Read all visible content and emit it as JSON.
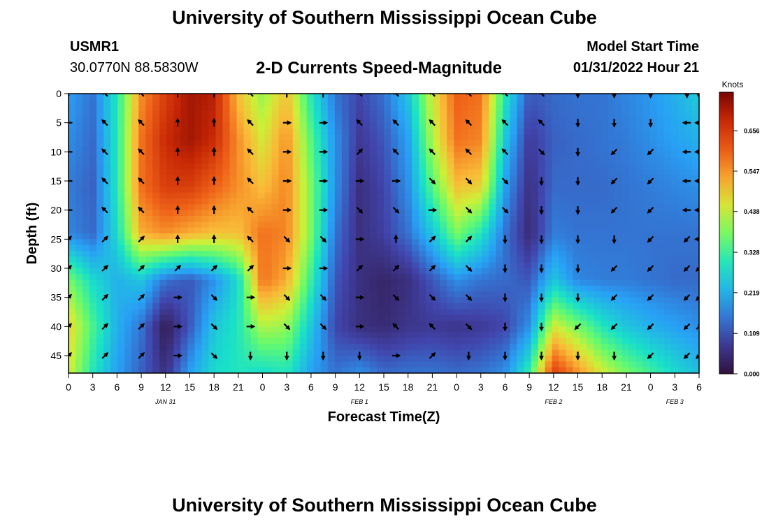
{
  "page": {
    "title": "University of Southern Mississippi Ocean Cube",
    "footer_title": "University of Southern Mississippi Ocean Cube",
    "station_id": "USMR1",
    "coordinates": "30.0770N  88.5830W",
    "plot_title": "2-D Currents Speed-Magnitude",
    "model_start_label": "Model Start Time",
    "model_start_value": "01/31/2022 Hour 21"
  },
  "chart_data": {
    "type": "heatmap",
    "title": "2-D Currents Speed-Magnitude",
    "xlabel": "Forecast Time(Z)",
    "ylabel": "Depth (ft)",
    "x_tick_labels": [
      "0",
      "3",
      "6",
      "9",
      "12",
      "15",
      "18",
      "21",
      "0",
      "3",
      "6",
      "9",
      "12",
      "15",
      "18",
      "21",
      "0",
      "3",
      "6",
      "9",
      "12",
      "15",
      "18",
      "21",
      "0",
      "3",
      "6"
    ],
    "x_range_hours": [
      0,
      78
    ],
    "date_labels": [
      {
        "text": "JAN 31",
        "hour": 12
      },
      {
        "text": "FEB 1",
        "hour": 36
      },
      {
        "text": "FEB 2",
        "hour": 60
      },
      {
        "text": "FEB 3",
        "hour": 75
      }
    ],
    "y_ticks": [
      0,
      5,
      10,
      15,
      20,
      25,
      30,
      35,
      40,
      45
    ],
    "y_range": [
      0,
      48
    ],
    "colorbar": {
      "label": "Knots",
      "ticks": [
        "0.656",
        "0.547",
        "0.438",
        "0.328",
        "0.219",
        "0.109",
        "0.000"
      ],
      "range": [
        0,
        0.76
      ]
    },
    "speed_columns_hours": [
      0,
      3,
      6,
      9,
      12,
      15,
      18,
      21,
      24,
      27,
      30,
      33,
      36,
      39,
      42,
      45,
      48,
      51,
      54,
      57,
      60,
      63,
      66,
      69,
      72,
      75,
      78
    ],
    "speed_rows_depth_ft": [
      0,
      8,
      16,
      24,
      32,
      40,
      48
    ],
    "speed_grid_knots": [
      [
        0.2,
        0.15,
        0.3,
        0.55,
        0.65,
        0.72,
        0.7,
        0.5,
        0.4,
        0.5,
        0.3,
        0.15,
        0.1,
        0.15,
        0.25,
        0.45,
        0.6,
        0.58,
        0.3,
        0.12,
        0.14,
        0.15,
        0.15,
        0.17,
        0.19,
        0.22,
        0.26
      ],
      [
        0.18,
        0.14,
        0.3,
        0.58,
        0.68,
        0.72,
        0.68,
        0.55,
        0.45,
        0.55,
        0.35,
        0.18,
        0.08,
        0.12,
        0.2,
        0.42,
        0.58,
        0.56,
        0.25,
        0.08,
        0.13,
        0.14,
        0.15,
        0.16,
        0.18,
        0.2,
        0.22
      ],
      [
        0.16,
        0.13,
        0.3,
        0.58,
        0.65,
        0.65,
        0.6,
        0.55,
        0.5,
        0.56,
        0.38,
        0.18,
        0.06,
        0.1,
        0.18,
        0.35,
        0.5,
        0.48,
        0.2,
        0.06,
        0.14,
        0.14,
        0.14,
        0.15,
        0.16,
        0.17,
        0.18
      ],
      [
        0.17,
        0.14,
        0.28,
        0.52,
        0.55,
        0.52,
        0.5,
        0.5,
        0.58,
        0.56,
        0.38,
        0.15,
        0.06,
        0.09,
        0.15,
        0.25,
        0.38,
        0.3,
        0.15,
        0.05,
        0.16,
        0.15,
        0.15,
        0.15,
        0.15,
        0.15,
        0.15
      ],
      [
        0.38,
        0.28,
        0.22,
        0.25,
        0.15,
        0.12,
        0.18,
        0.28,
        0.58,
        0.52,
        0.32,
        0.12,
        0.06,
        0.04,
        0.06,
        0.12,
        0.18,
        0.15,
        0.14,
        0.12,
        0.25,
        0.17,
        0.16,
        0.16,
        0.15,
        0.14,
        0.14
      ],
      [
        0.48,
        0.34,
        0.22,
        0.15,
        0.02,
        0.12,
        0.25,
        0.3,
        0.42,
        0.4,
        0.25,
        0.1,
        0.06,
        0.05,
        0.07,
        0.08,
        0.07,
        0.08,
        0.1,
        0.18,
        0.45,
        0.38,
        0.3,
        0.25,
        0.22,
        0.2,
        0.18
      ],
      [
        0.45,
        0.3,
        0.2,
        0.13,
        0.06,
        0.2,
        0.28,
        0.3,
        0.28,
        0.3,
        0.2,
        0.15,
        0.18,
        0.14,
        0.15,
        0.15,
        0.14,
        0.15,
        0.18,
        0.32,
        0.65,
        0.55,
        0.45,
        0.38,
        0.33,
        0.28,
        0.24
      ]
    ],
    "vector_columns_hours": [
      0,
      4.5,
      9,
      13.5,
      18,
      22.5,
      27,
      31.5,
      36,
      40.5,
      45,
      49.5,
      54,
      58.5,
      63,
      67.5,
      72,
      76.5,
      78
    ],
    "vector_rows_depth_ft": [
      0,
      5,
      10,
      15,
      20,
      25,
      30,
      35,
      40,
      45
    ],
    "vector_angles_deg": [
      [
        225,
        315,
        315,
        0,
        0,
        315,
        0,
        0,
        315,
        315,
        315,
        315,
        315,
        315,
        180,
        180,
        180,
        180,
        180
      ],
      [
        270,
        315,
        315,
        0,
        0,
        315,
        90,
        90,
        315,
        315,
        315,
        315,
        315,
        315,
        180,
        180,
        180,
        270,
        270
      ],
      [
        270,
        315,
        315,
        0,
        0,
        315,
        90,
        90,
        45,
        315,
        315,
        315,
        315,
        135,
        180,
        225,
        225,
        270,
        270
      ],
      [
        270,
        315,
        315,
        0,
        0,
        315,
        90,
        90,
        90,
        90,
        135,
        135,
        135,
        180,
        180,
        225,
        225,
        270,
        270
      ],
      [
        270,
        315,
        315,
        0,
        0,
        315,
        90,
        90,
        135,
        135,
        90,
        135,
        135,
        180,
        180,
        225,
        225,
        270,
        270
      ],
      [
        45,
        45,
        45,
        0,
        0,
        315,
        135,
        135,
        90,
        0,
        45,
        45,
        180,
        180,
        180,
        180,
        225,
        225,
        270
      ],
      [
        45,
        45,
        45,
        45,
        45,
        45,
        90,
        90,
        45,
        45,
        45,
        135,
        180,
        180,
        180,
        225,
        225,
        225,
        225
      ],
      [
        45,
        45,
        45,
        90,
        135,
        90,
        135,
        135,
        90,
        135,
        135,
        135,
        180,
        180,
        180,
        225,
        225,
        225,
        225
      ],
      [
        45,
        45,
        45,
        90,
        135,
        90,
        135,
        135,
        90,
        315,
        315,
        135,
        180,
        180,
        225,
        225,
        225,
        225,
        45
      ],
      [
        45,
        45,
        45,
        90,
        135,
        180,
        180,
        180,
        180,
        90,
        45,
        180,
        180,
        180,
        180,
        180,
        225,
        225,
        225
      ]
    ]
  }
}
